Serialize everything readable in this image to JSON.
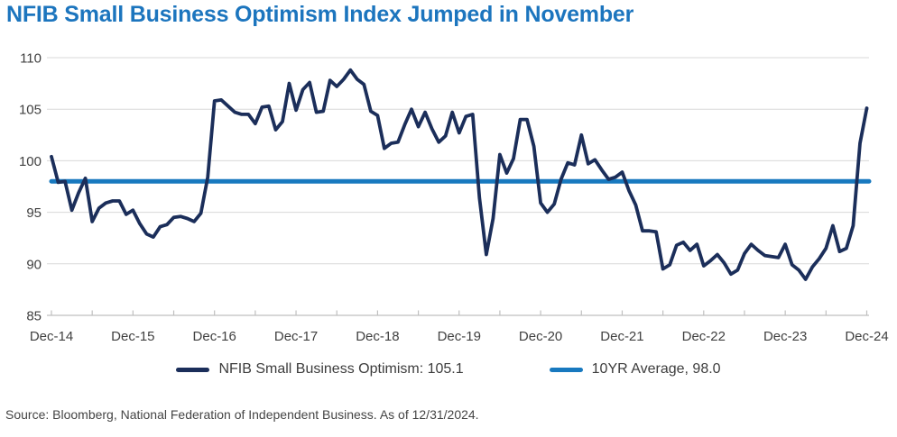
{
  "title": "NFIB Small Business Optimism Index Jumped in November",
  "source": "Source: Bloomberg, National Federation of Independent Business. As of 12/31/2024.",
  "legend": [
    {
      "label": "NFIB Small Business Optimism: 105.1",
      "color": "#1B2E5A"
    },
    {
      "label": "10YR Average, 98.0",
      "color": "#1879BF"
    }
  ],
  "colors": {
    "title": "#1C75BE",
    "line": "#1B2E5A",
    "average": "#1879BF",
    "grid": "#D8D8D8",
    "axis": "#BFBFBF",
    "text": "#404040"
  },
  "chart_data": {
    "type": "line",
    "title": "NFIB Small Business Optimism Index Jumped in November",
    "x_unit": "month",
    "x_range": [
      "Dec-14",
      "Dec-24"
    ],
    "x_tick_labels": [
      "Dec-14",
      "Dec-15",
      "Dec-16",
      "Dec-17",
      "Dec-18",
      "Dec-19",
      "Dec-20",
      "Dec-21",
      "Dec-22",
      "Dec-23",
      "Dec-24"
    ],
    "x_minor_tick_every_months": 6,
    "ylim": [
      85,
      110
    ],
    "y_ticks": [
      85,
      90,
      95,
      100,
      105,
      110
    ],
    "grid": "horizontal",
    "legend_position": "bottom",
    "series": [
      {
        "name": "NFIB Small Business Optimism",
        "last_value": 105.1,
        "color": "#1B2E5A",
        "frequency": "monthly",
        "start": "Dec-14",
        "end": "Dec-24",
        "values": [
          100.4,
          97.9,
          98.0,
          95.2,
          96.9,
          98.3,
          94.1,
          95.4,
          95.9,
          96.1,
          96.1,
          94.8,
          95.2,
          93.9,
          92.9,
          92.6,
          93.6,
          93.8,
          94.5,
          94.6,
          94.4,
          94.1,
          94.9,
          98.4,
          105.8,
          105.9,
          105.3,
          104.7,
          104.5,
          104.5,
          103.6,
          105.2,
          105.3,
          103.0,
          103.8,
          107.5,
          104.9,
          106.9,
          107.6,
          104.7,
          104.8,
          107.8,
          107.2,
          107.9,
          108.8,
          107.9,
          107.4,
          104.8,
          104.4,
          101.2,
          101.7,
          101.8,
          103.5,
          105.0,
          103.3,
          104.7,
          103.1,
          101.8,
          102.4,
          104.7,
          102.7,
          104.3,
          104.5,
          96.4,
          90.9,
          94.4,
          100.6,
          98.8,
          100.2,
          104.0,
          104.0,
          101.4,
          95.9,
          95.0,
          95.8,
          98.2,
          99.8,
          99.6,
          102.5,
          99.7,
          100.1,
          99.1,
          98.2,
          98.4,
          98.9,
          97.1,
          95.7,
          93.2,
          93.2,
          93.1,
          89.5,
          89.9,
          91.8,
          92.1,
          91.3,
          91.9,
          89.8,
          90.3,
          90.9,
          90.1,
          89.0,
          89.4,
          91.0,
          91.9,
          91.3,
          90.8,
          90.7,
          90.6,
          91.9,
          89.9,
          89.4,
          88.5,
          89.7,
          90.5,
          91.5,
          93.7,
          91.2,
          91.5,
          93.7,
          101.7,
          105.1
        ]
      },
      {
        "name": "10YR Average",
        "type": "constant",
        "value": 98.0,
        "color": "#1879BF"
      }
    ]
  }
}
